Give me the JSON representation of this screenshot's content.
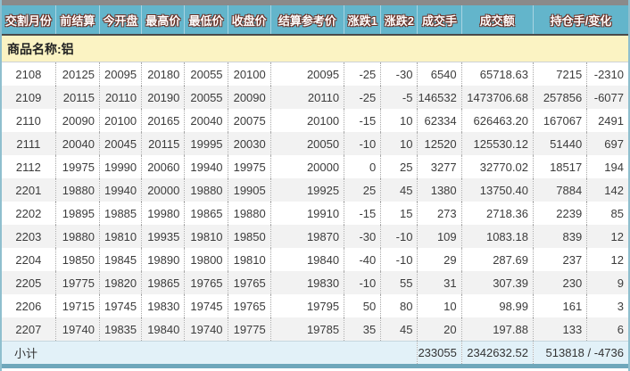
{
  "colors": {
    "header_bg": "#63b5cb",
    "header_text": "#ffffff",
    "header_text_outline": "#6b3126",
    "top_bar": "#8a8a8a",
    "bottom_bar": "#6ea7bb",
    "product_row_bg": "#fbf3c3",
    "row_alt_bg": "#f2f2f2",
    "subtotal_bg": "#e2f1f8",
    "data_text": "#3c3c3c"
  },
  "table": {
    "product_label": "商品名称:铝",
    "columns": [
      "交割月份",
      "前结算",
      "今开盘",
      "最高价",
      "最低价",
      "收盘价",
      "结算参考价",
      "涨跌1",
      "涨跌2",
      "成交手",
      "成交额",
      "持仓手/变化"
    ],
    "field_names": [
      "month",
      "prev_settlement",
      "open",
      "high",
      "low",
      "close",
      "settlement_ref",
      "change1",
      "change2",
      "volume",
      "turnover",
      "open_interest",
      "oi_change"
    ],
    "rows": [
      [
        "2108",
        "20125",
        "20095",
        "20180",
        "20055",
        "20100",
        "20095",
        "-25",
        "-30",
        "6540",
        "65718.63",
        "7215",
        "-2310"
      ],
      [
        "2109",
        "20115",
        "20110",
        "20190",
        "20055",
        "20090",
        "20110",
        "-25",
        "-5",
        "146532",
        "1473706.68",
        "257856",
        "-6077"
      ],
      [
        "2110",
        "20090",
        "20100",
        "20165",
        "20040",
        "20075",
        "20100",
        "-15",
        "10",
        "62334",
        "626463.20",
        "167067",
        "2491"
      ],
      [
        "2111",
        "20040",
        "20045",
        "20115",
        "19995",
        "20030",
        "20050",
        "-10",
        "10",
        "12520",
        "125530.12",
        "51440",
        "697"
      ],
      [
        "2112",
        "19975",
        "19990",
        "20060",
        "19940",
        "19975",
        "20000",
        "0",
        "25",
        "3277",
        "32770.02",
        "18517",
        "194"
      ],
      [
        "2201",
        "19880",
        "19940",
        "20000",
        "19880",
        "19905",
        "19925",
        "25",
        "45",
        "1380",
        "13750.40",
        "7884",
        "142"
      ],
      [
        "2202",
        "19895",
        "19885",
        "19980",
        "19865",
        "19880",
        "19910",
        "-15",
        "15",
        "273",
        "2718.36",
        "2239",
        "85"
      ],
      [
        "2203",
        "19880",
        "19810",
        "19935",
        "19810",
        "19850",
        "19870",
        "-30",
        "-10",
        "109",
        "1083.18",
        "839",
        "12"
      ],
      [
        "2204",
        "19850",
        "19845",
        "19890",
        "19800",
        "19810",
        "19840",
        "-40",
        "-10",
        "29",
        "287.69",
        "237",
        "12"
      ],
      [
        "2205",
        "19775",
        "19820",
        "19865",
        "19765",
        "19765",
        "19830",
        "-10",
        "55",
        "31",
        "307.39",
        "230",
        "9"
      ],
      [
        "2206",
        "19715",
        "19745",
        "19830",
        "19745",
        "19765",
        "19795",
        "50",
        "80",
        "10",
        "98.99",
        "161",
        "3"
      ],
      [
        "2207",
        "19740",
        "19835",
        "19840",
        "19740",
        "19775",
        "19785",
        "35",
        "45",
        "20",
        "197.88",
        "133",
        "6"
      ]
    ],
    "subtotal": {
      "label": "小计",
      "volume": "233055",
      "turnover": "2342632.52",
      "oi_and_change": "513818 / -4736"
    }
  }
}
